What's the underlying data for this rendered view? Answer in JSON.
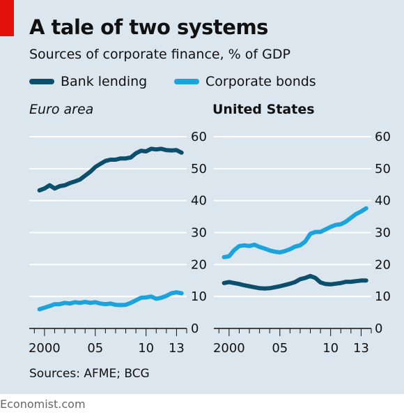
{
  "title": "A tale of two systems",
  "subtitle": "Sources of corporate finance, % of GDP",
  "source": "Sources: AFME; BCG",
  "brand": "Economist.com",
  "colors": {
    "bank_lending": "#0b4f6c",
    "corporate_bonds": "#1aa3dc",
    "accent": "#e3120b",
    "background": "#dbe6ee"
  },
  "legend": [
    {
      "label": "Bank lending",
      "color": "#0b4f6c"
    },
    {
      "label": "Corporate bonds",
      "color": "#1aa3dc"
    }
  ],
  "chart_data": [
    {
      "type": "line",
      "title": "Euro area",
      "title_style": "italic",
      "x_tick_labels": [
        "2000",
        "05",
        "10",
        "13"
      ],
      "x_tick_values": [
        2000,
        2005,
        2010,
        2013
      ],
      "xlim": [
        1998.5,
        2014.0
      ],
      "ylim": [
        0,
        60
      ],
      "yticks": [
        0,
        10,
        20,
        30,
        40,
        50,
        60
      ],
      "y_axis_side": "right",
      "grid": true,
      "series": [
        {
          "name": "Bank lending",
          "color": "#0b4f6c",
          "x": [
            1999.5,
            2000.0,
            2000.5,
            2001.0,
            2001.5,
            2002.0,
            2002.5,
            2003.0,
            2003.5,
            2004.0,
            2004.5,
            2005.0,
            2005.5,
            2006.0,
            2006.5,
            2007.0,
            2007.5,
            2008.0,
            2008.5,
            2009.0,
            2009.5,
            2010.0,
            2010.5,
            2011.0,
            2011.5,
            2012.0,
            2012.5,
            2013.0,
            2013.5
          ],
          "y": [
            43.2,
            43.8,
            44.8,
            43.8,
            44.5,
            44.8,
            45.5,
            46.0,
            46.6,
            47.8,
            49.0,
            50.5,
            51.5,
            52.4,
            52.8,
            52.8,
            53.2,
            53.2,
            53.5,
            54.8,
            55.6,
            55.4,
            56.2,
            56.0,
            56.2,
            55.8,
            55.7,
            55.8,
            55.0
          ]
        },
        {
          "name": "Corporate bonds",
          "color": "#1aa3dc",
          "x": [
            1999.5,
            2000.0,
            2000.5,
            2001.0,
            2001.5,
            2002.0,
            2002.5,
            2003.0,
            2003.5,
            2004.0,
            2004.5,
            2005.0,
            2005.5,
            2006.0,
            2006.5,
            2007.0,
            2007.5,
            2008.0,
            2008.5,
            2009.0,
            2009.5,
            2010.0,
            2010.5,
            2011.0,
            2011.5,
            2012.0,
            2012.5,
            2013.0,
            2013.5
          ],
          "y": [
            6.0,
            6.5,
            7.0,
            7.6,
            7.6,
            8.0,
            7.8,
            8.2,
            8.0,
            8.3,
            8.0,
            8.2,
            7.8,
            7.6,
            7.8,
            7.4,
            7.3,
            7.4,
            8.0,
            8.8,
            9.6,
            9.7,
            10.0,
            9.3,
            9.6,
            10.2,
            11.0,
            11.3,
            11.0
          ]
        }
      ]
    },
    {
      "type": "line",
      "title": "United States",
      "title_style": "bold",
      "x_tick_labels": [
        "2000",
        "05",
        "10",
        "13"
      ],
      "x_tick_values": [
        2000,
        2005,
        2010,
        2013
      ],
      "xlim": [
        1998.5,
        2014.0
      ],
      "ylim": [
        0,
        60
      ],
      "yticks": [
        0,
        10,
        20,
        30,
        40,
        50,
        60
      ],
      "y_axis_side": "right",
      "grid": true,
      "series": [
        {
          "name": "Bank lending",
          "color": "#0b4f6c",
          "x": [
            1999.5,
            2000.0,
            2000.5,
            2001.0,
            2001.5,
            2002.0,
            2002.5,
            2003.0,
            2003.5,
            2004.0,
            2004.5,
            2005.0,
            2005.5,
            2006.0,
            2006.5,
            2007.0,
            2007.5,
            2008.0,
            2008.5,
            2009.0,
            2009.5,
            2010.0,
            2010.5,
            2011.0,
            2011.5,
            2012.0,
            2012.5,
            2013.0,
            2013.5
          ],
          "y": [
            14.2,
            14.5,
            14.2,
            13.9,
            13.5,
            13.2,
            12.9,
            12.6,
            12.5,
            12.6,
            12.9,
            13.2,
            13.6,
            14.0,
            14.5,
            15.4,
            15.8,
            16.4,
            15.8,
            14.4,
            13.9,
            13.8,
            14.0,
            14.2,
            14.6,
            14.6,
            14.8,
            15.0,
            15.0
          ]
        },
        {
          "name": "Corporate bonds",
          "color": "#1aa3dc",
          "x": [
            1999.5,
            2000.0,
            2000.5,
            2001.0,
            2001.5,
            2002.0,
            2002.5,
            2003.0,
            2003.5,
            2004.0,
            2004.5,
            2005.0,
            2005.5,
            2006.0,
            2006.5,
            2007.0,
            2007.5,
            2008.0,
            2008.5,
            2009.0,
            2009.5,
            2010.0,
            2010.5,
            2011.0,
            2011.5,
            2012.0,
            2012.5,
            2013.0,
            2013.5
          ],
          "y": [
            22.3,
            22.6,
            24.5,
            25.8,
            26.0,
            25.8,
            26.2,
            25.5,
            25.0,
            24.4,
            24.0,
            23.8,
            24.2,
            24.8,
            25.6,
            26.0,
            27.2,
            29.6,
            30.2,
            30.2,
            31.0,
            31.8,
            32.4,
            32.6,
            33.4,
            34.6,
            35.8,
            36.6,
            37.6
          ]
        }
      ]
    }
  ]
}
